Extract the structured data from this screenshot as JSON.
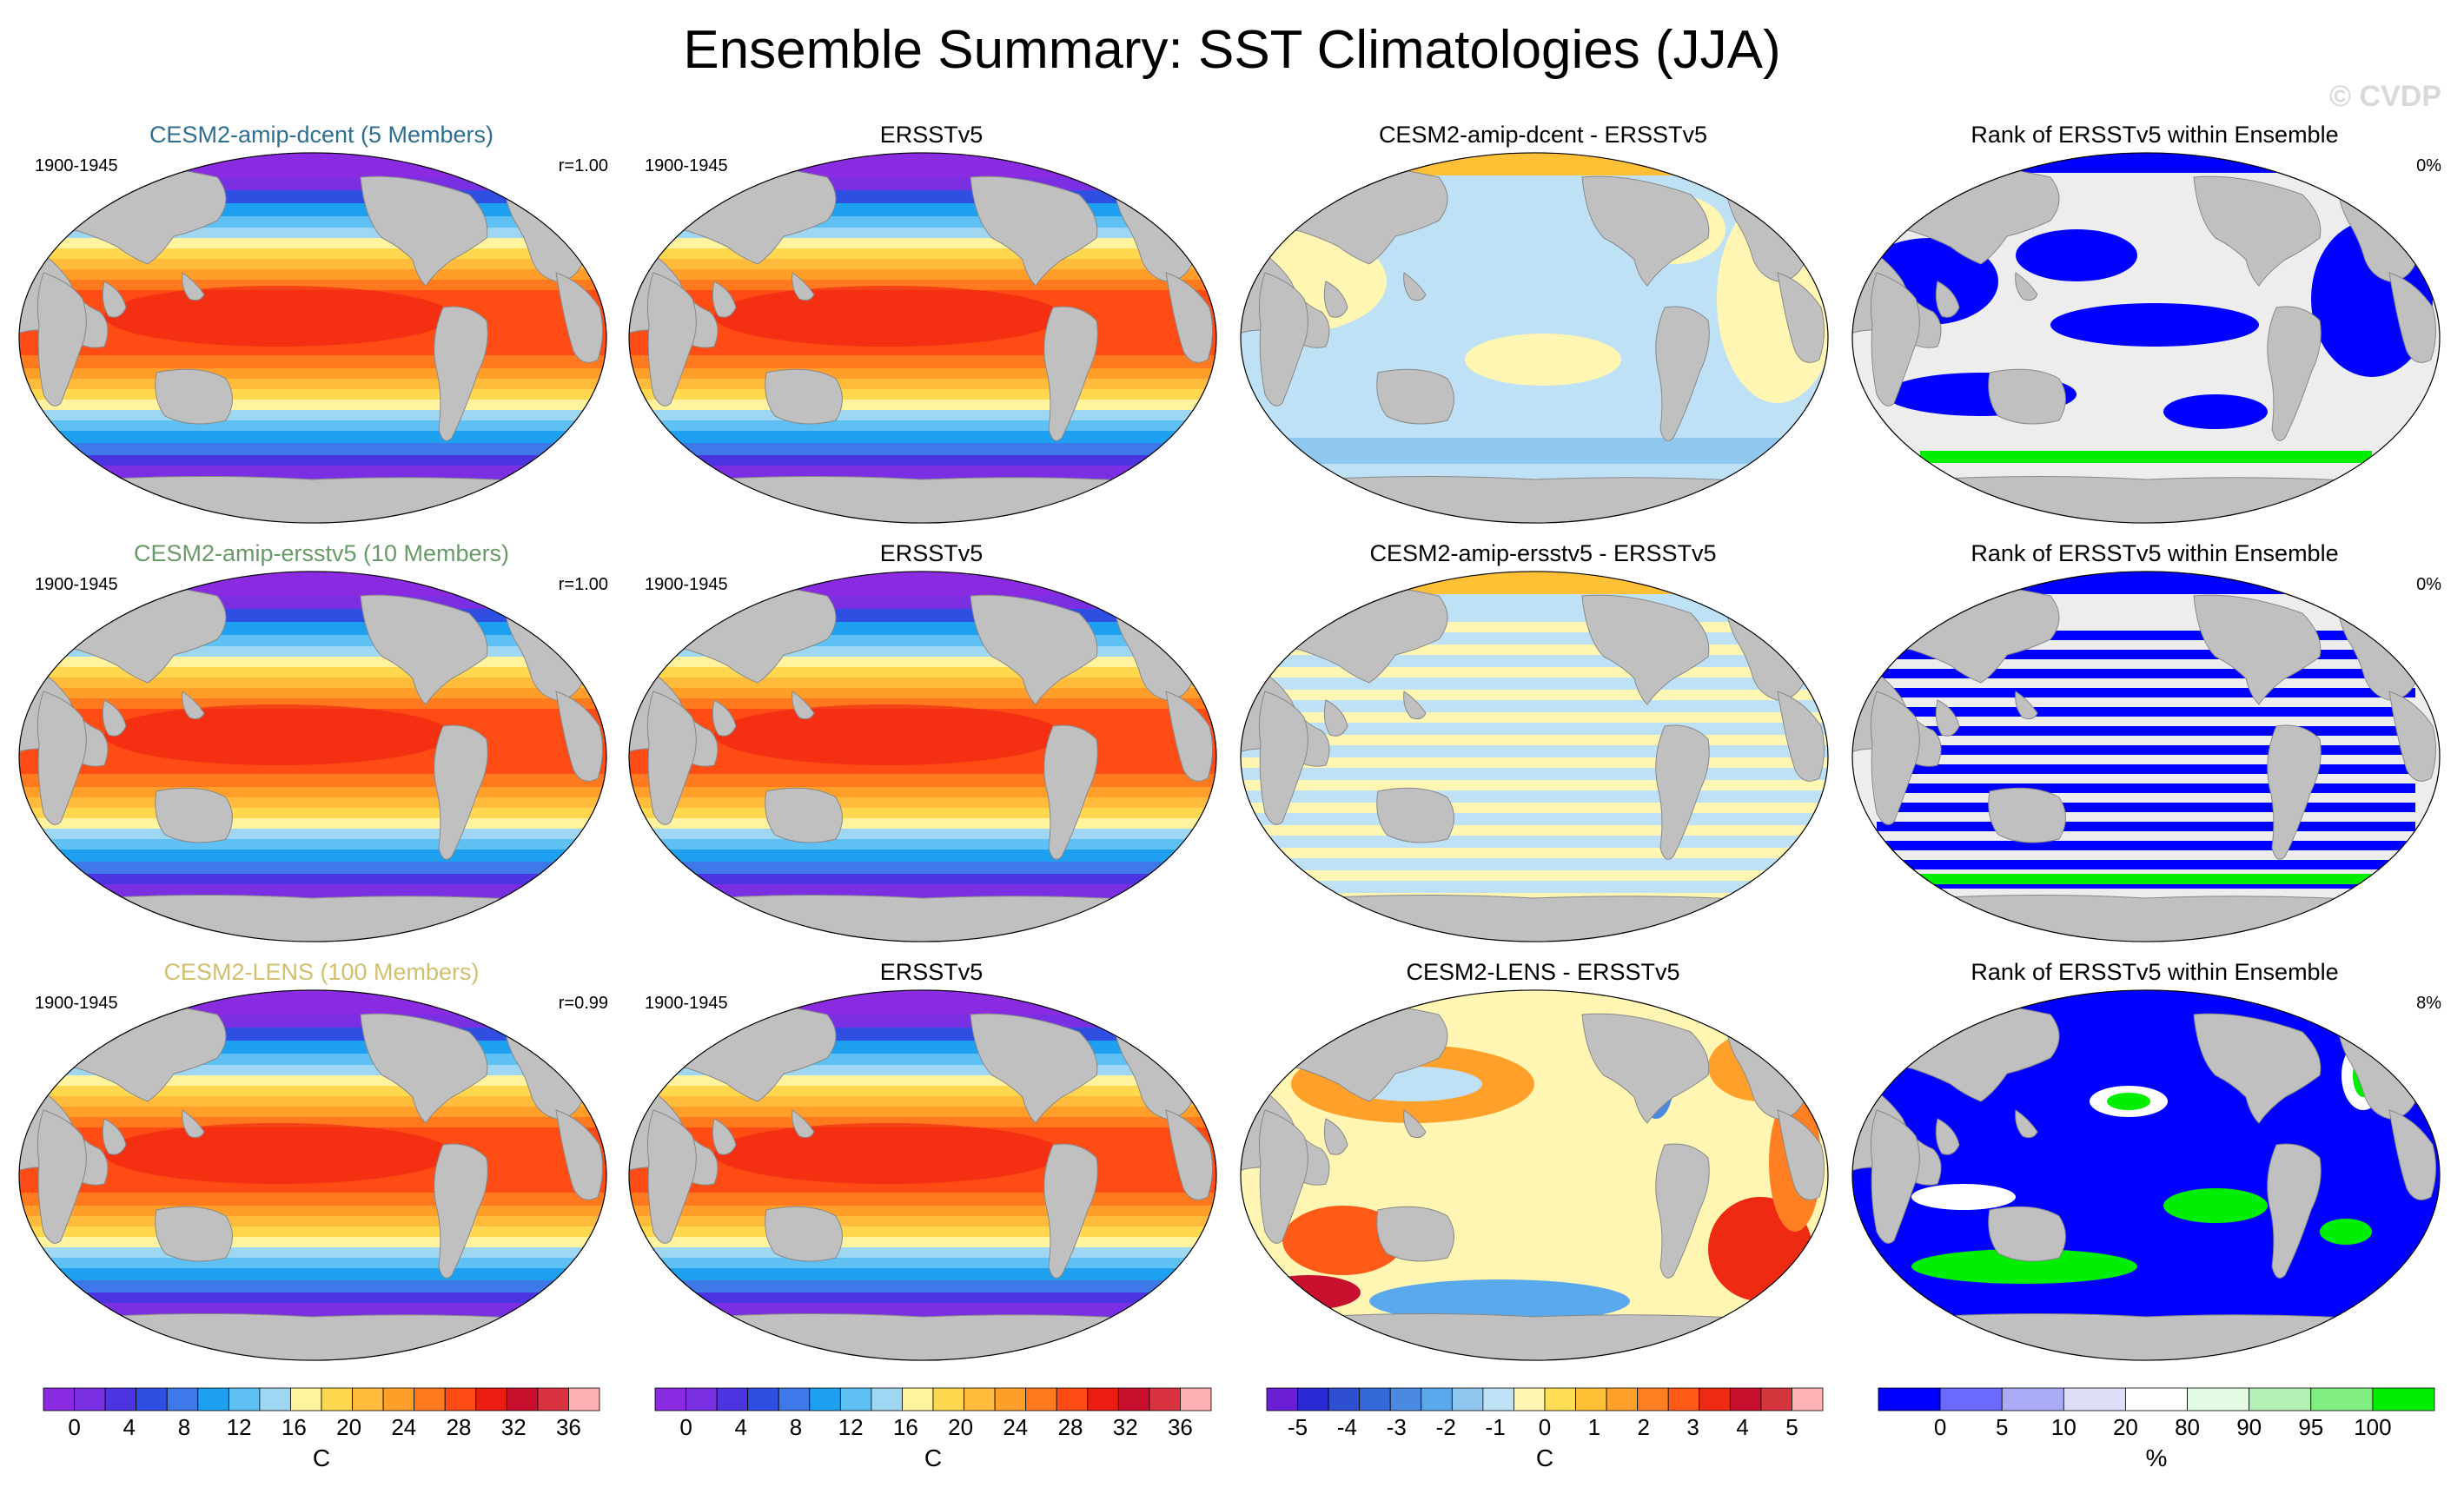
{
  "title": "Ensemble Summary: SST Climatologies (JJA)",
  "watermark": "© CVDP",
  "colors": {
    "sst": [
      "#8a2be2",
      "#7b2fe3",
      "#4b35e0",
      "#2f4fe3",
      "#3f78e8",
      "#1ea0f0",
      "#5ec0f3",
      "#9fd6f2",
      "#fff3a0",
      "#ffd84f",
      "#ffbc3c",
      "#ff9f2a",
      "#ff7a1f",
      "#ff4b14",
      "#ec1c10",
      "#c8102e",
      "#d9333f",
      "#ffb0b0"
    ],
    "diff": [
      "#6a1fd6",
      "#2a2ad4",
      "#2e4fd2",
      "#3568d8",
      "#4a8ae0",
      "#5aa9ec",
      "#8fc7ef",
      "#bfe1f5",
      "#fff6b3",
      "#ffdd55",
      "#ffc036",
      "#ffa02a",
      "#ff7f22",
      "#ff5a18",
      "#ee2a12",
      "#c8102e",
      "#d5353d",
      "#ffb3b3"
    ],
    "rank": [
      "#0000ff",
      "#6a6aff",
      "#aaaaf5",
      "#dedef8",
      "#ffffff",
      "#e2fbe2",
      "#b3f0b3",
      "#80ee80",
      "#00ee00"
    ],
    "land": "#c0c0c0",
    "title_row1": "#2f6f8f",
    "title_row2": "#6a9a6a",
    "title_row3": "#d0c070"
  },
  "rows": [
    {
      "col1": {
        "title": "CESM2-amip-dcent (5 Members)",
        "period": "1900-1945",
        "stat": "r=1.00"
      },
      "col2": {
        "title": "ERSSTv5",
        "period": "1900-1945"
      },
      "col3": {
        "title": "CESM2-amip-dcent - ERSSTv5"
      },
      "col4": {
        "title": "Rank of ERSSTv5 within Ensemble",
        "stat": "0%"
      }
    },
    {
      "col1": {
        "title": "CESM2-amip-ersstv5 (10 Members)",
        "period": "1900-1945",
        "stat": "r=1.00"
      },
      "col2": {
        "title": "ERSSTv5",
        "period": "1900-1945"
      },
      "col3": {
        "title": "CESM2-amip-ersstv5 - ERSSTv5"
      },
      "col4": {
        "title": "Rank of ERSSTv5 within Ensemble",
        "stat": "0%"
      }
    },
    {
      "col1": {
        "title": "CESM2-LENS (100 Members)",
        "period": "1900-1945",
        "stat": "r=0.99"
      },
      "col2": {
        "title": "ERSSTv5",
        "period": "1900-1945"
      },
      "col3": {
        "title": "CESM2-LENS - ERSSTv5"
      },
      "col4": {
        "title": "Rank of ERSSTv5 within Ensemble",
        "stat": "8%"
      }
    }
  ],
  "legends": {
    "sst": {
      "ticks": [
        "0",
        "4",
        "8",
        "12",
        "16",
        "20",
        "24",
        "28",
        "32",
        "36"
      ],
      "unit": "C"
    },
    "diff": {
      "ticks": [
        "-5",
        "-4",
        "-3",
        "-2",
        "-1",
        "0",
        "1",
        "2",
        "3",
        "4",
        "5"
      ],
      "unit": "C"
    },
    "rank": {
      "ticks": [
        "0",
        "5",
        "10",
        "20",
        "80",
        "90",
        "95",
        "100"
      ],
      "unit": "%"
    }
  },
  "chart_data": {
    "type": "heatmap",
    "title": "Ensemble Summary: SST Climatologies (JJA)",
    "projection": "global map",
    "period": "1900-1945",
    "rows": [
      {
        "model": "CESM2-amip-dcent (5 Members)",
        "pattern_correlation": 1.0,
        "rank_stat_percent": 0
      },
      {
        "model": "CESM2-amip-ersstv5 (10 Members)",
        "pattern_correlation": 1.0,
        "rank_stat_percent": 0
      },
      {
        "model": "CESM2-LENS (100 Members)",
        "pattern_correlation": 0.99,
        "rank_stat_percent": 8
      }
    ],
    "sst_contour_levels_C": [
      0,
      2,
      4,
      6,
      8,
      10,
      12,
      14,
      16,
      18,
      20,
      22,
      24,
      26,
      28,
      30,
      32,
      34,
      36
    ],
    "diff_contour_levels_C": [
      -5,
      -4.5,
      -4,
      -3.5,
      -3,
      -2.5,
      -2,
      -1.5,
      -1,
      -0.5,
      0,
      0.5,
      1,
      1.5,
      2,
      2.5,
      3,
      3.5,
      4,
      4.5,
      5
    ],
    "rank_levels_percent": [
      0,
      5,
      10,
      20,
      80,
      90,
      95,
      100
    ]
  }
}
